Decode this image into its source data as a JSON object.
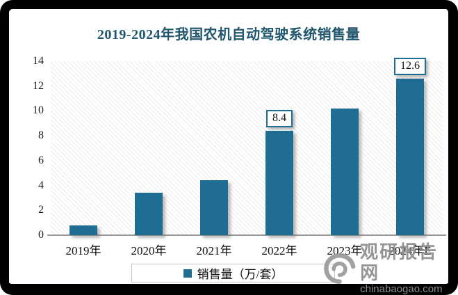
{
  "title": "2019-2024年我国农机自动驾驶系统销售量",
  "chart_data": {
    "type": "bar",
    "title": "2019-2024年我国农机自动驾驶系统销售量",
    "categories": [
      "2019年",
      "2020年",
      "2021年",
      "2022年",
      "2023年",
      "2024年E"
    ],
    "values": [
      0.8,
      3.4,
      4.4,
      8.4,
      10.2,
      12.6
    ],
    "series_name": "销售量（万/套）",
    "xlabel": "",
    "ylabel": "",
    "ylim": [
      0,
      14
    ],
    "yticks": [
      0,
      2,
      4,
      6,
      8,
      10,
      12,
      14
    ],
    "grid": false,
    "legend_position": "bottom",
    "data_labels": [
      {
        "index": 3,
        "text": "8.4"
      },
      {
        "index": 5,
        "text": "12.6"
      }
    ]
  },
  "legend": {
    "label": "销售量（万/套）"
  },
  "watermark": {
    "brand": "观研报告网",
    "domain": "chinabaogao.com",
    "logo_icon": "swirl-g-logo"
  },
  "colors": {
    "bar": "#1F6D92",
    "title": "#20566E",
    "callout_border": "#1F6D92",
    "axis_line": "#9a9a9a",
    "watermark_gray": "#8d8d8d",
    "frame": "#000000"
  }
}
